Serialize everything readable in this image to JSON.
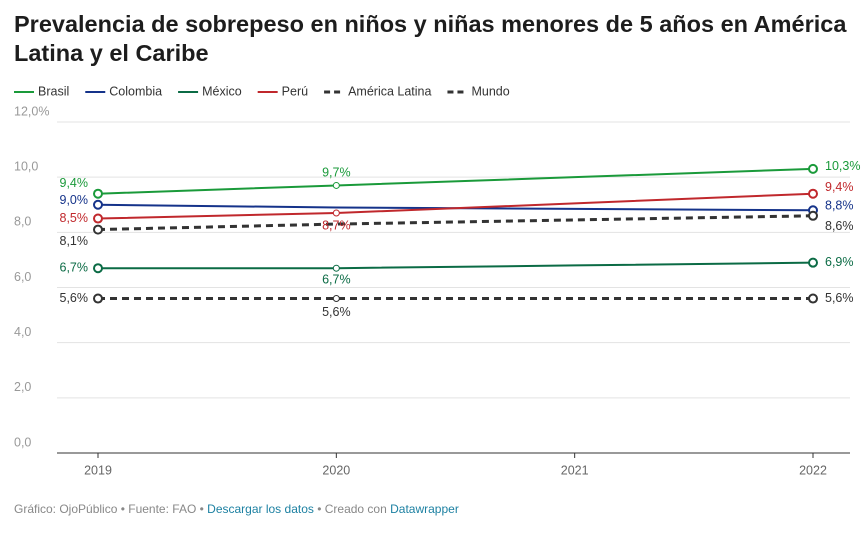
{
  "chart_data": {
    "type": "line",
    "title": "Prevalencia de sobrepeso en niños y niñas menores de 5 años en América Latina y el Caribe",
    "x": [
      2019,
      2020,
      2021,
      2022
    ],
    "xlim": [
      2019,
      2022
    ],
    "xticks": [
      2019,
      2020,
      2021,
      2022
    ],
    "ylim": [
      0,
      12
    ],
    "yticks": [
      {
        "value": 0,
        "label": "0,0"
      },
      {
        "value": 2,
        "label": "2,0"
      },
      {
        "value": 4,
        "label": "4,0"
      },
      {
        "value": 6,
        "label": "6,0"
      },
      {
        "value": 8,
        "label": "8,0"
      },
      {
        "value": 10,
        "label": "10,0"
      },
      {
        "value": 12,
        "label": "12,0%"
      }
    ],
    "grid": true,
    "legend": "top",
    "series": [
      {
        "name": "Brasil",
        "color": "#1a9a3a",
        "dashed": false,
        "values": [
          9.4,
          9.7,
          10.0,
          10.3
        ],
        "value_labels": [
          "9,4%",
          "9,7%",
          null,
          "10,3%"
        ]
      },
      {
        "name": "Colombia",
        "color": "#15338a",
        "dashed": false,
        "values": [
          9.0,
          8.9,
          8.85,
          8.8
        ],
        "value_labels": [
          "9,0%",
          null,
          null,
          "8,8%"
        ]
      },
      {
        "name": "México",
        "color": "#0b6b45",
        "dashed": false,
        "values": [
          6.7,
          6.7,
          6.8,
          6.9
        ],
        "value_labels": [
          "6,7%",
          "6,7%",
          null,
          "6,9%"
        ]
      },
      {
        "name": "Perú",
        "color": "#c0282c",
        "dashed": false,
        "values": [
          8.5,
          8.7,
          9.05,
          9.4
        ],
        "value_labels": [
          "8,5%",
          "8,7%",
          null,
          "9,4%"
        ]
      },
      {
        "name": "América Latina",
        "color": "#333333",
        "dashed": true,
        "values": [
          8.1,
          8.3,
          8.45,
          8.6
        ],
        "value_labels": [
          "8,1%",
          null,
          null,
          "8,6%"
        ]
      },
      {
        "name": "Mundo",
        "color": "#333333",
        "dashed": true,
        "values": [
          5.6,
          5.6,
          5.6,
          5.6
        ],
        "value_labels": [
          "5,6%",
          "5,6%",
          null,
          "5,6%"
        ]
      }
    ]
  },
  "footer": {
    "credit": "Gráfico: OjoPúblico • Fuente: FAO • ",
    "download": "Descargar los datos",
    "made_with": " • Creado con ",
    "tool": "Datawrapper"
  }
}
